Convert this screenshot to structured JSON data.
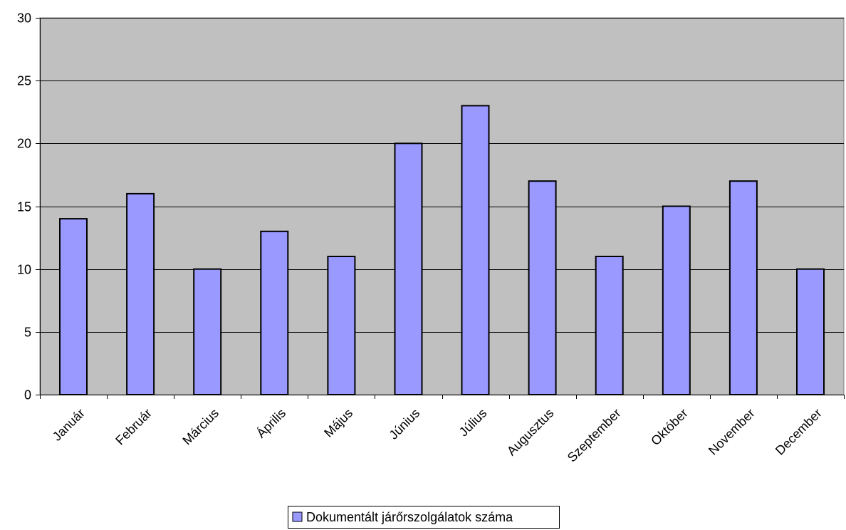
{
  "chart_data": {
    "type": "bar",
    "title": "",
    "xlabel": "",
    "ylabel": "",
    "categories": [
      "Január",
      "Február",
      "Március",
      "Április",
      "Május",
      "Június",
      "Július",
      "Augusztus",
      "Szeptember",
      "Október",
      "November",
      "December"
    ],
    "series": [
      {
        "name": "Dokumentált járőrszolgálatok száma",
        "values": [
          14,
          16,
          10,
          13,
          11,
          20,
          23,
          17,
          11,
          15,
          17,
          10
        ],
        "color": "#9999ff"
      }
    ],
    "ylim": [
      0,
      30
    ],
    "yticks": [
      0,
      5,
      10,
      15,
      20,
      25,
      30
    ],
    "grid": true,
    "plot_background": "#c0c0c0",
    "legend_position": "bottom-center"
  }
}
